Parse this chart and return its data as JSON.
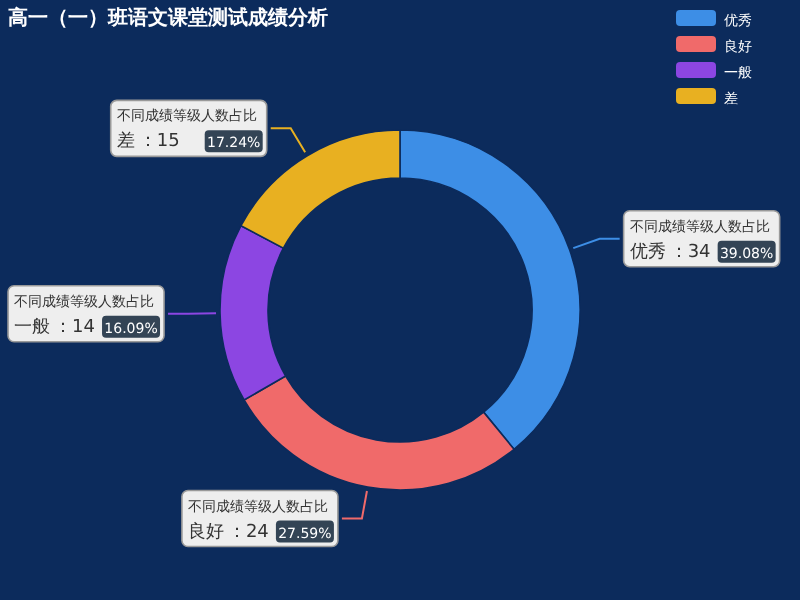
{
  "chart_data": {
    "type": "donut",
    "title": "高一（一）班语文课堂测试成绩分析",
    "categories": [
      "优秀",
      "良好",
      "一般",
      "差"
    ],
    "annotations": [
      "：34",
      "：24",
      "：14",
      "：15"
    ],
    "series": [
      {
        "name": "不同成绩等级人数占比",
        "values": [
          39.08,
          27.59,
          16.09,
          17.24
        ],
        "value_labels": [
          "39.08%",
          "27.59%",
          "16.09%",
          "17.24%"
        ],
        "colors": [
          "#3d8ee6",
          "#f06a6a",
          "#8c46e2",
          "#e8b021"
        ]
      }
    ],
    "legend": "top right"
  }
}
